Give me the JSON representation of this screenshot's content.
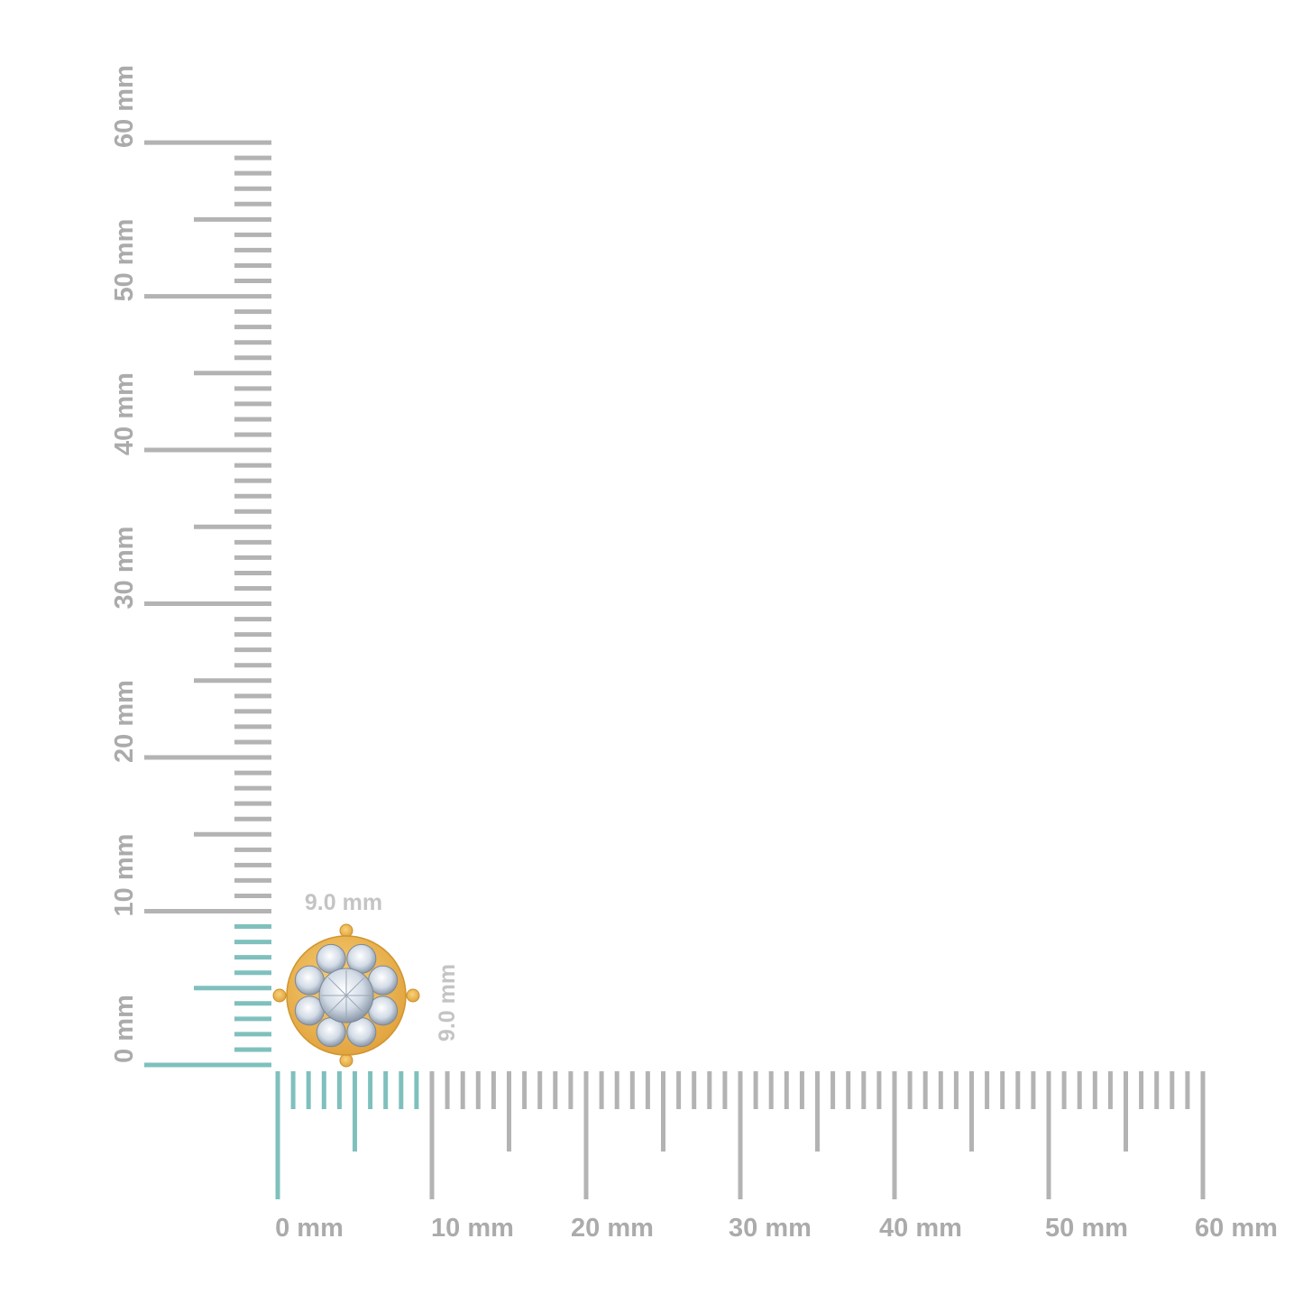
{
  "rulers": {
    "unit": "mm",
    "range": [
      0,
      60
    ],
    "major_step": 10,
    "highlight_extent_mm": 9.0,
    "horizontal_labels": [
      "0 mm",
      "10 mm",
      "20 mm",
      "30 mm",
      "40 mm",
      "50 mm",
      "60 mm"
    ],
    "vertical_labels": [
      "0 mm",
      "10 mm",
      "20 mm",
      "30 mm",
      "40 mm",
      "50 mm",
      "60 mm"
    ]
  },
  "dimensions": {
    "width_label": "9.0 mm",
    "height_label": "9.0 mm"
  },
  "product": {
    "type": "cluster stud earring",
    "metal_color": "#f2b84a",
    "stone_color": "#dfe6ee",
    "stone_count": 9
  },
  "colors": {
    "ruler_gray": "#b3b3b3",
    "ruler_highlight": "#7fc0bd",
    "label_gray": "#ababab"
  }
}
